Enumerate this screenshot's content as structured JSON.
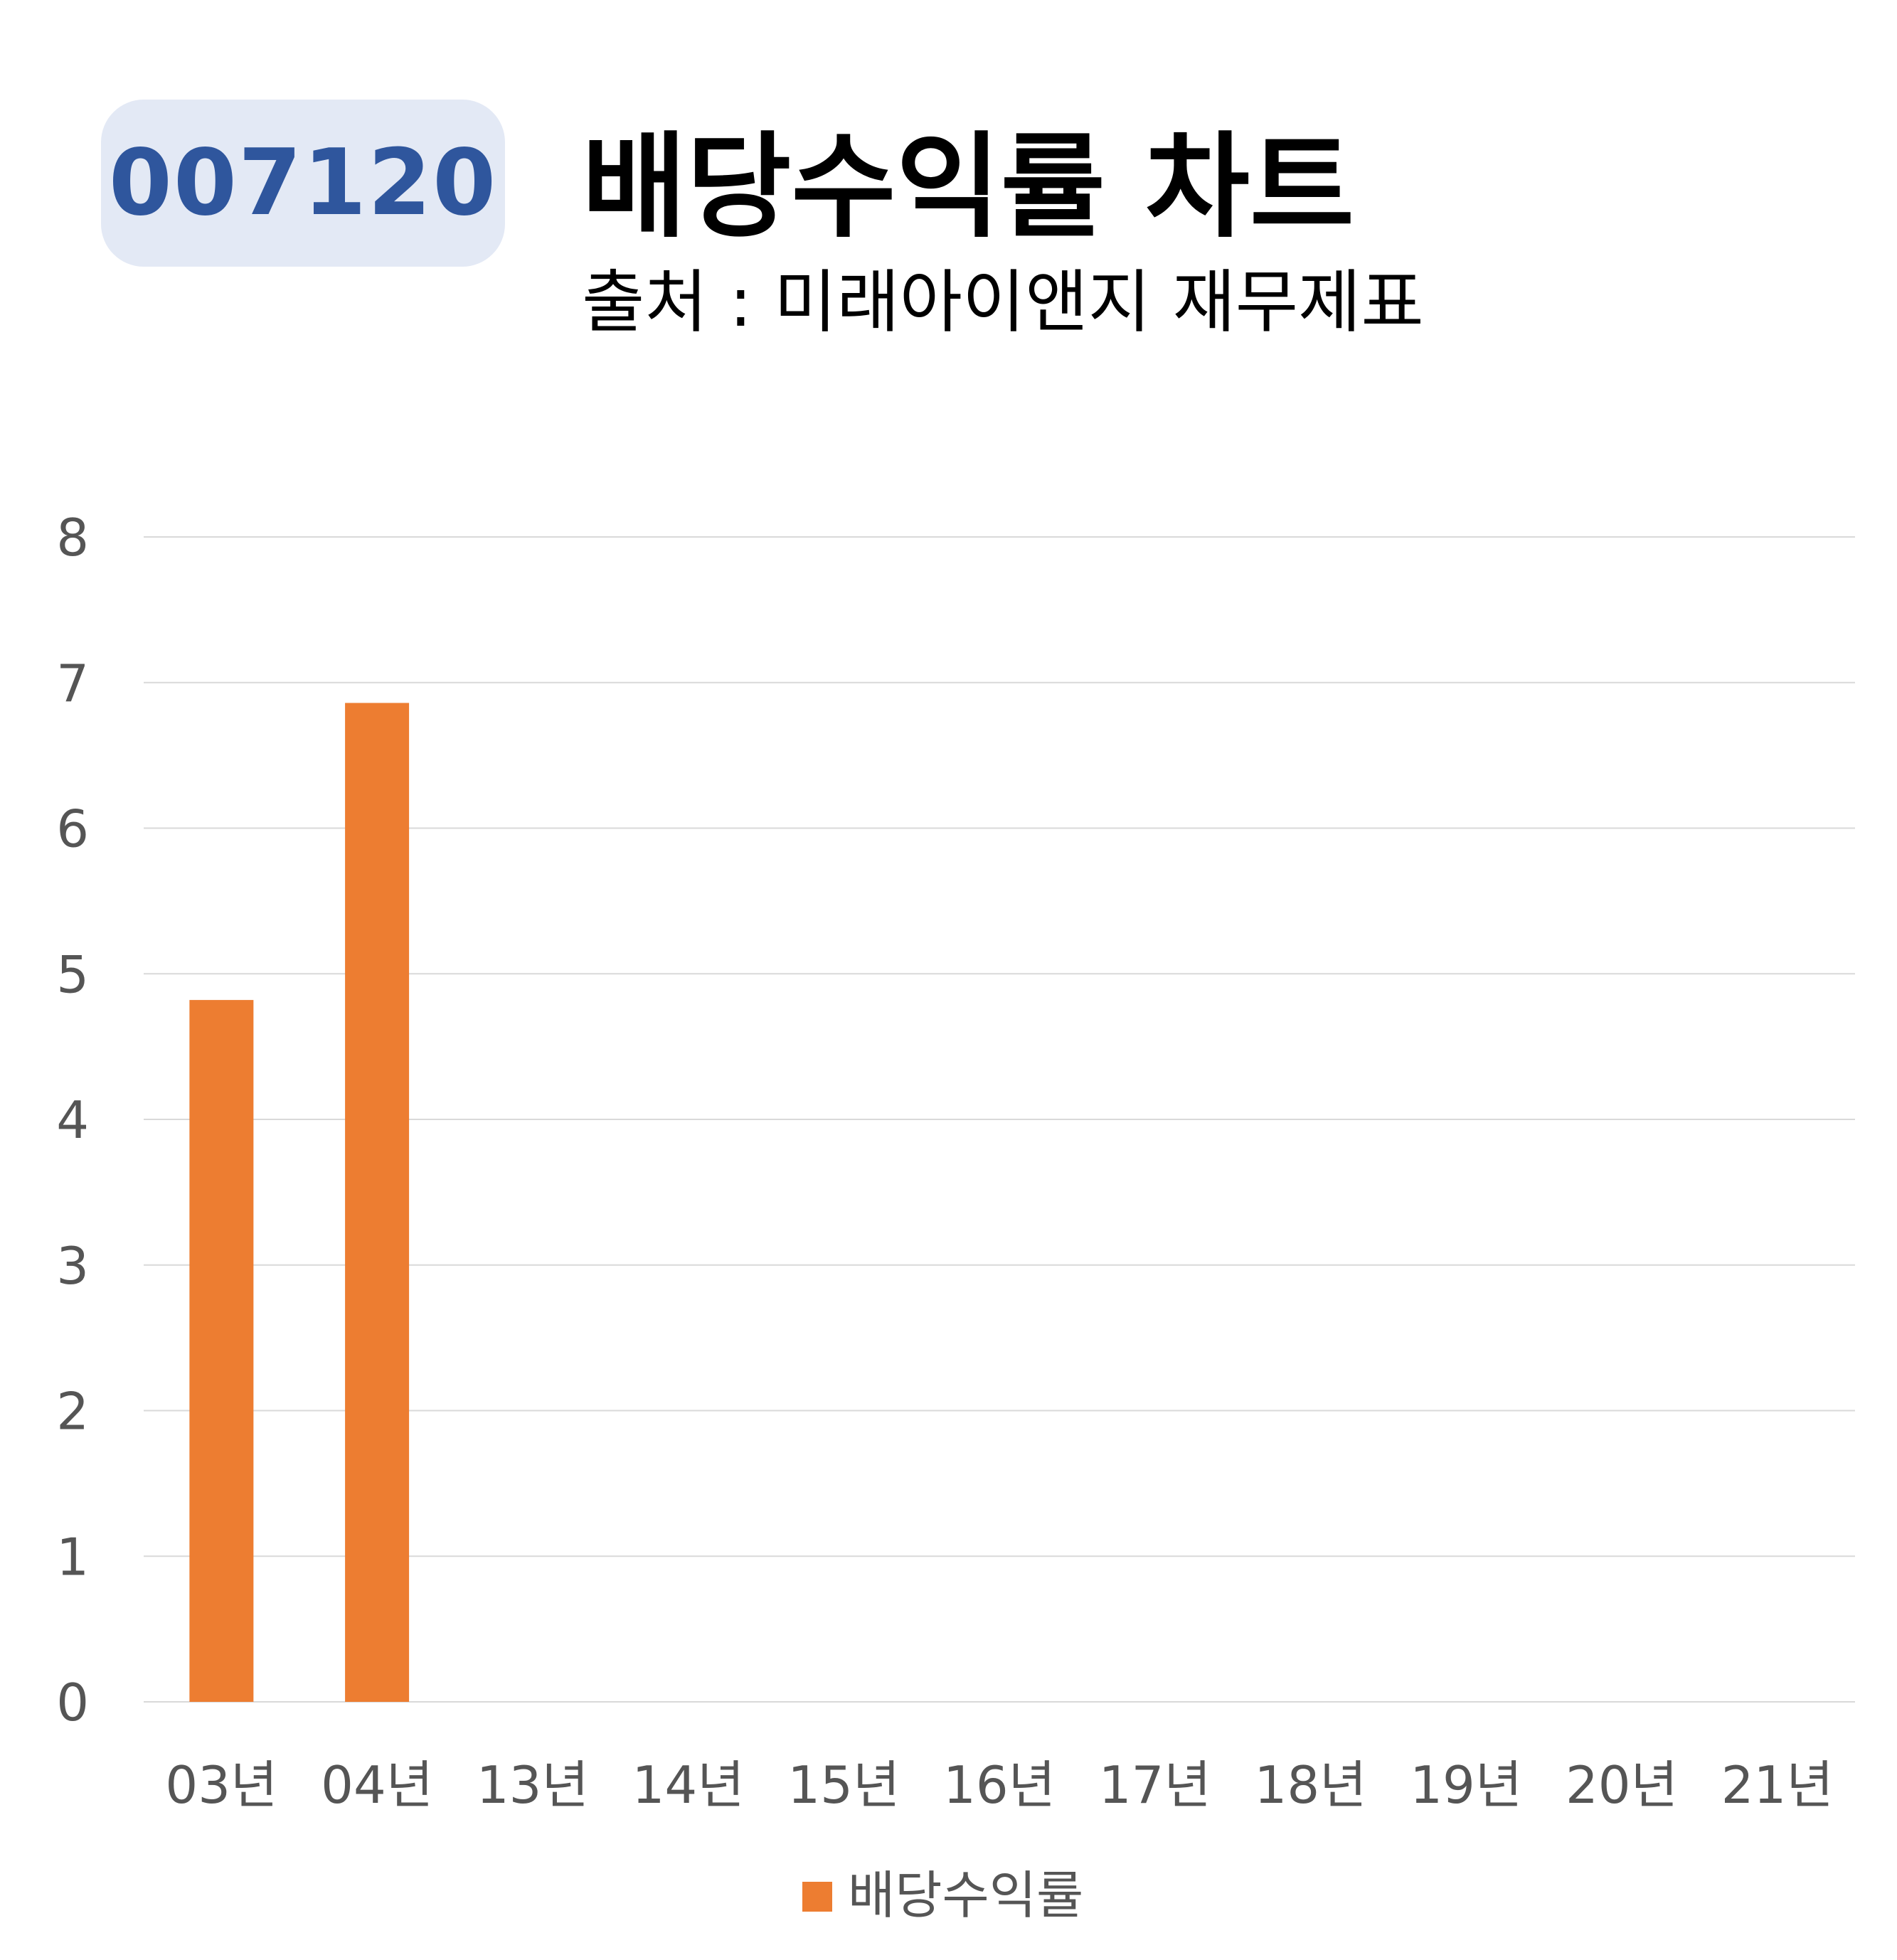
{
  "header": {
    "code": "007120",
    "title": "배당수익률 차트",
    "subtitle": "출처 : 미래아이앤지 재무제표"
  },
  "colors": {
    "bar": "#ed7d31",
    "badge_bg": "#e3e9f5",
    "badge_text": "#2f569d",
    "grid": "#d9d9d9",
    "tick_text": "#555555"
  },
  "chart_data": {
    "type": "bar",
    "categories": [
      "03년",
      "04년",
      "13년",
      "14년",
      "15년",
      "16년",
      "17년",
      "18년",
      "19년",
      "20년",
      "21년"
    ],
    "series": [
      {
        "name": "배당수익률",
        "values": [
          4.82,
          6.86,
          null,
          null,
          null,
          null,
          null,
          null,
          null,
          null,
          null
        ]
      }
    ],
    "ylim": [
      0,
      8
    ],
    "yticks": [
      0,
      1,
      2,
      3,
      4,
      5,
      6,
      7,
      8
    ],
    "grid": true,
    "legend": "bottom-center"
  }
}
